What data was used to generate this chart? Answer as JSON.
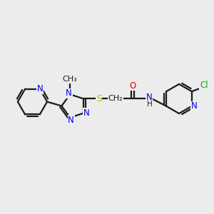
{
  "background_color": "#ececec",
  "bond_color": "#1a1a1a",
  "atom_colors": {
    "N": "#0000e0",
    "O": "#e00000",
    "S": "#b8b800",
    "Cl": "#00b000",
    "C": "#1a1a1a",
    "H": "#1a1a1a"
  },
  "lw": 1.6,
  "font_size": 8.5,
  "fig_size": [
    3.0,
    3.0
  ],
  "dpi": 100
}
